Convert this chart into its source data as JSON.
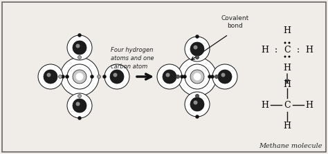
{
  "bg_color": "#f0ede8",
  "border_color": "#555555",
  "nucleus_color": "#1a1a1a",
  "line_color": "#111111",
  "text_color": "#222222",
  "label_text": "Four hydrogen\natoms and one\ncarbon atom",
  "covalent_label": "Covalent\nbond",
  "methane_label": "Methane molecule",
  "figsize": [
    4.74,
    2.23
  ],
  "dpi": 100
}
